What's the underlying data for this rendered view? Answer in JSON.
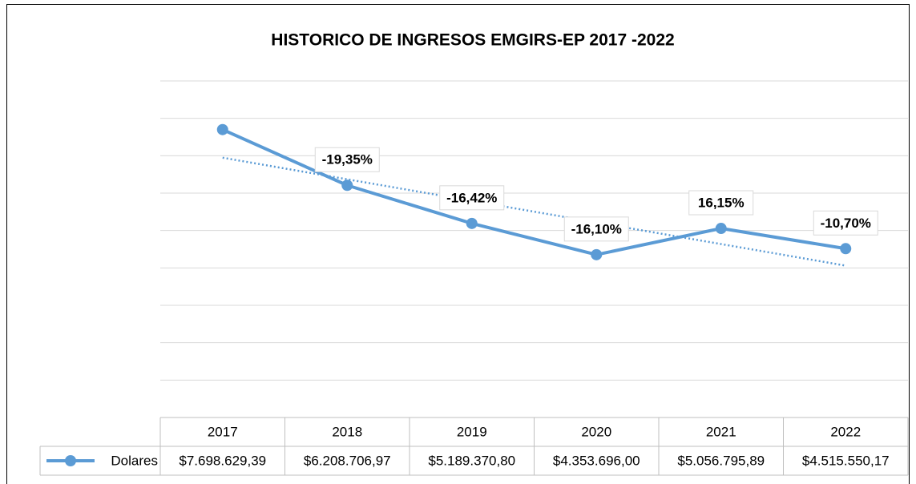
{
  "chart_data": {
    "type": "line",
    "title": "HISTORICO DE INGRESOS EMGIRS-EP 2017 -2022",
    "categories": [
      "2017",
      "2018",
      "2019",
      "2020",
      "2021",
      "2022"
    ],
    "series": [
      {
        "name": "Dolares",
        "color": "#5b9bd5",
        "values": [
          7698629.39,
          6208706.97,
          5189370.8,
          4353696.0,
          5056795.89,
          4515550.17
        ],
        "value_labels": [
          "$7.698.629,39",
          "$6.208.706,97",
          "$5.189.370,80",
          "$4.353.696,00",
          "$5.056.795,89",
          "$4.515.550,17"
        ],
        "data_labels": [
          null,
          "-19,35%",
          "-16,42%",
          "-16,10%",
          "16,15%",
          "-10,70%"
        ]
      }
    ],
    "ylim": [
      0,
      9000000
    ],
    "yticks": [
      0,
      1000000,
      2000000,
      3000000,
      4000000,
      5000000,
      6000000,
      7000000,
      8000000,
      9000000
    ],
    "grid": true,
    "trendline": "linear",
    "data_table": true
  }
}
